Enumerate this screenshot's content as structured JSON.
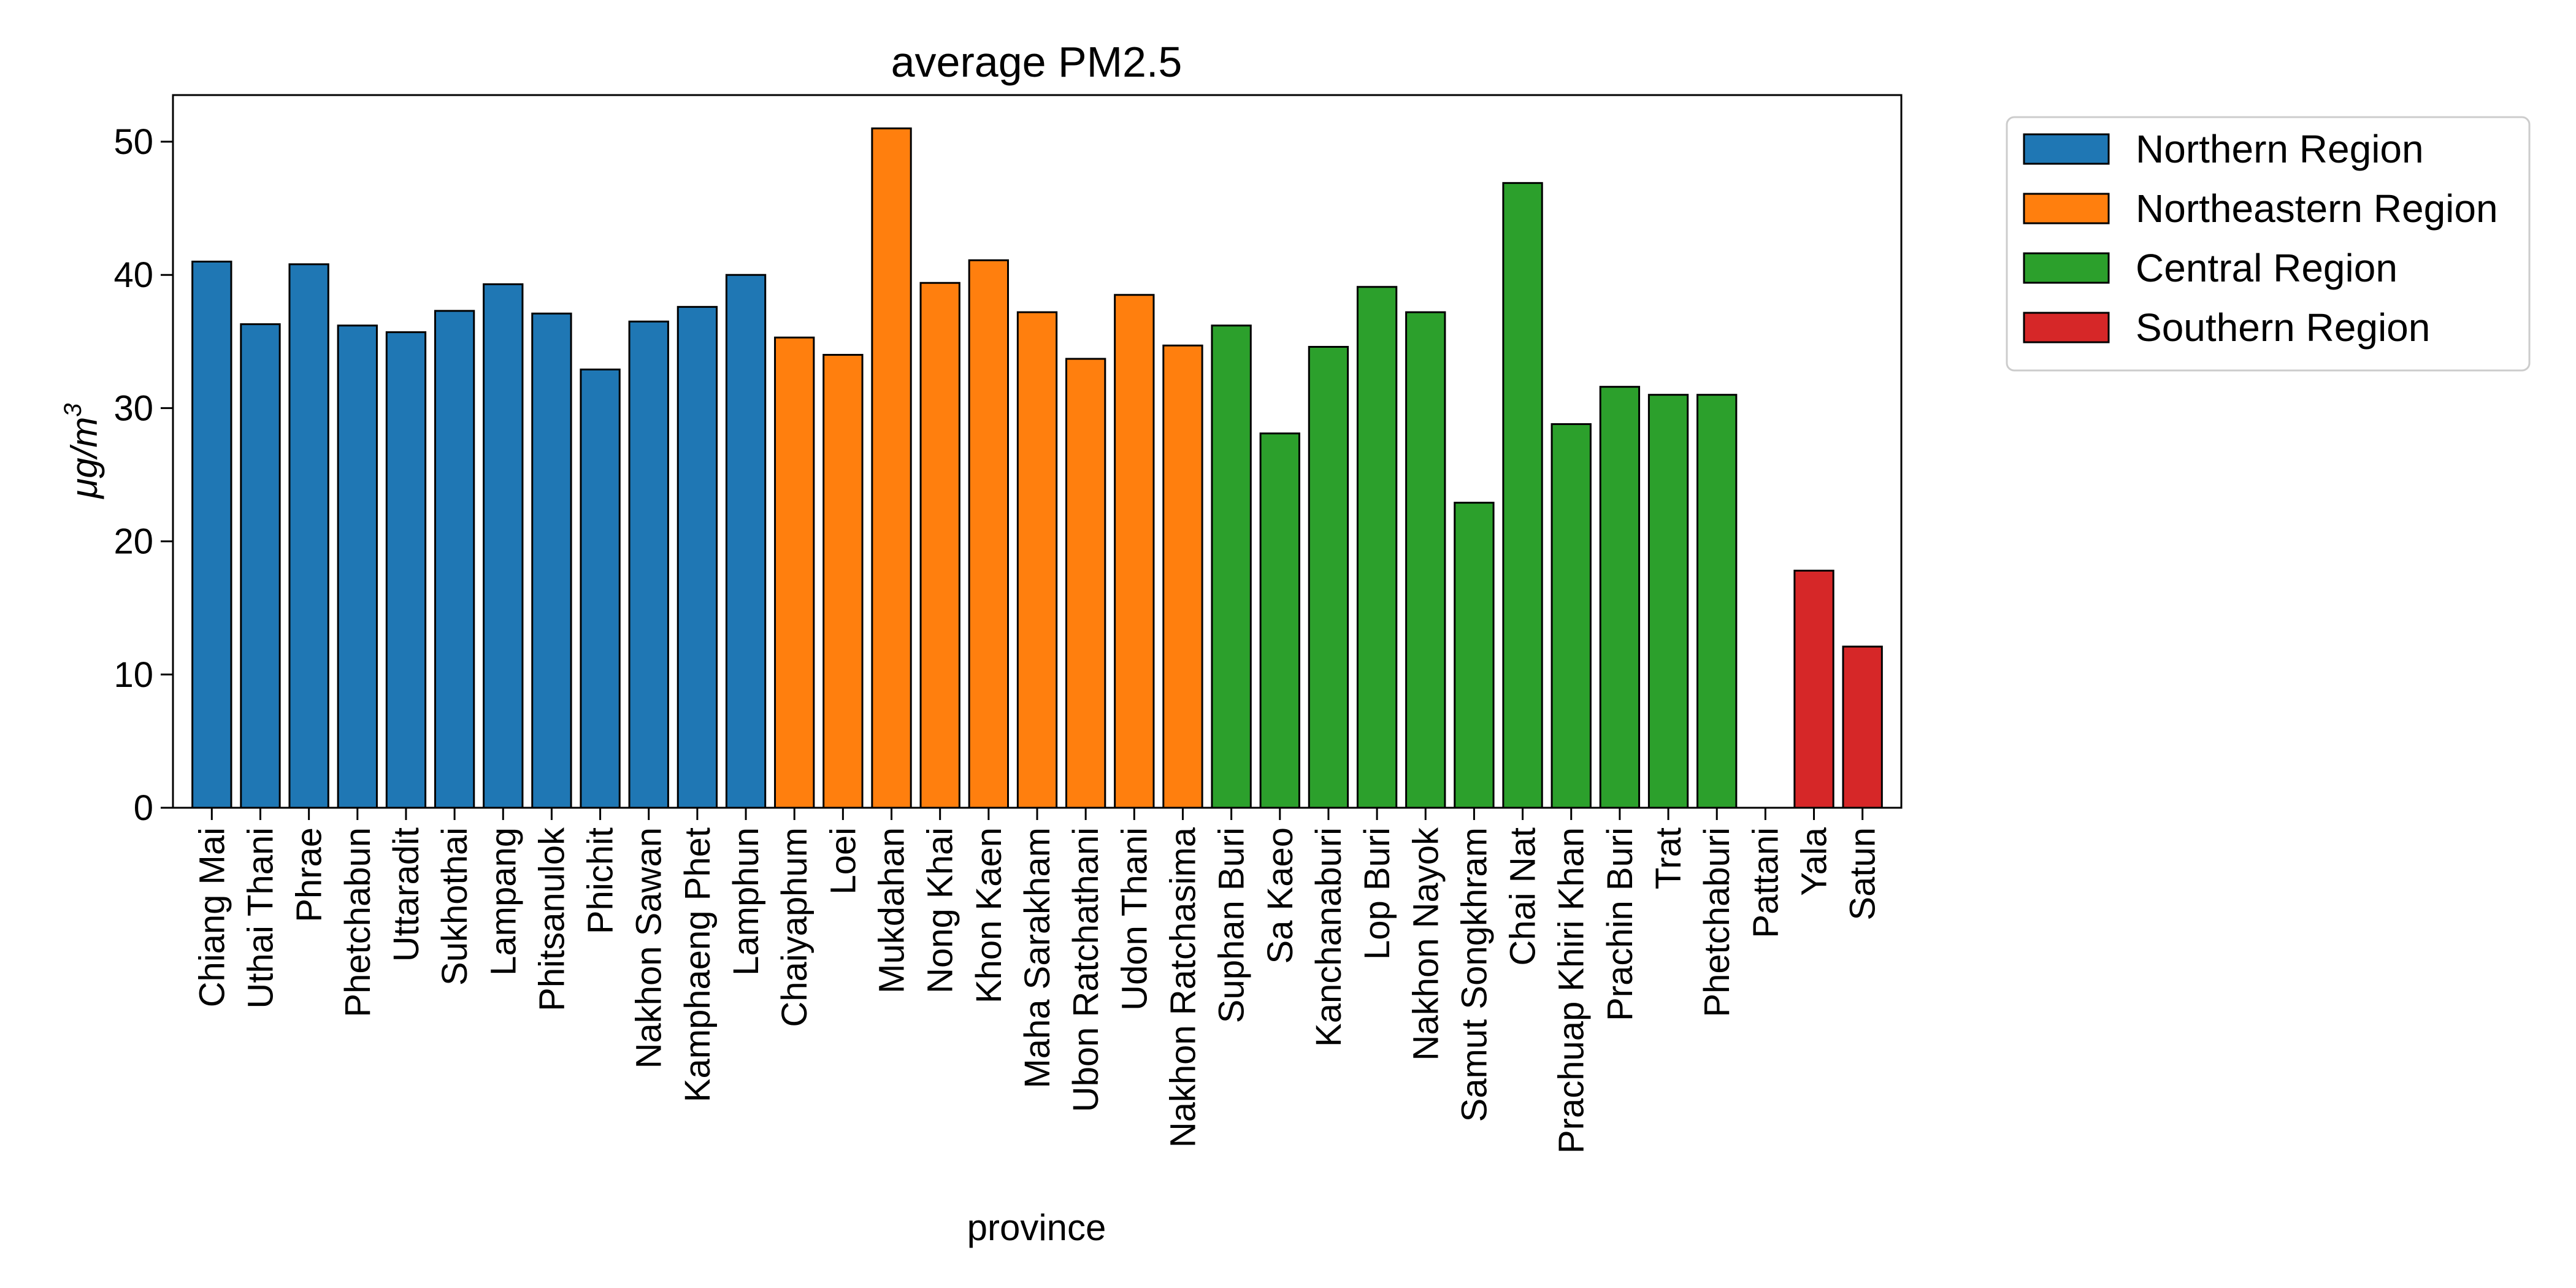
{
  "chart_data": {
    "type": "bar",
    "title": "average PM2.5",
    "xlabel": "province",
    "ylabel_base": "μg/m",
    "ylabel_sup": "3",
    "ylim": [
      0,
      53.5
    ],
    "yticks": [
      0,
      10,
      20,
      30,
      40,
      50
    ],
    "grid": false,
    "legend_position": "outside-top-right",
    "categories": [
      "Chiang Mai",
      "Uthai Thani",
      "Phrae",
      "Phetchabun",
      "Uttaradit",
      "Sukhothai",
      "Lampang",
      "Phitsanulok",
      "Phichit",
      "Nakhon Sawan",
      "Kamphaeng Phet",
      "Lamphun",
      "Chaiyaphum",
      "Loei",
      "Mukdahan",
      "Nong Khai",
      "Khon Kaen",
      "Maha Sarakham",
      "Ubon Ratchathani",
      "Udon Thani",
      "Nakhon Ratchasima",
      "Suphan Buri",
      "Sa Kaeo",
      "Kanchanaburi",
      "Lop Buri",
      "Nakhon Nayok",
      "Samut Songkhram",
      "Chai Nat",
      "Prachuap Khiri Khan",
      "Prachin Buri",
      "Trat",
      "Phetchaburi",
      "Pattani",
      "Yala",
      "Satun"
    ],
    "values": [
      41.0,
      36.3,
      40.8,
      36.2,
      35.7,
      37.3,
      39.3,
      37.1,
      32.9,
      36.5,
      37.6,
      40.0,
      35.3,
      34.0,
      51.0,
      39.4,
      41.1,
      37.2,
      33.7,
      38.5,
      34.7,
      36.2,
      28.1,
      34.6,
      39.1,
      37.2,
      22.9,
      46.9,
      28.8,
      31.6,
      31.0,
      31.0,
      null,
      17.8,
      12.1
    ],
    "regions": [
      "Northern Region",
      "Northern Region",
      "Northern Region",
      "Northern Region",
      "Northern Region",
      "Northern Region",
      "Northern Region",
      "Northern Region",
      "Northern Region",
      "Northern Region",
      "Northern Region",
      "Northern Region",
      "Northeastern Region",
      "Northeastern Region",
      "Northeastern Region",
      "Northeastern Region",
      "Northeastern Region",
      "Northeastern Region",
      "Northeastern Region",
      "Northeastern Region",
      "Northeastern Region",
      "Central Region",
      "Central Region",
      "Central Region",
      "Central Region",
      "Central Region",
      "Central Region",
      "Central Region",
      "Central Region",
      "Central Region",
      "Central Region",
      "Central Region",
      "Southern Region",
      "Southern Region",
      "Southern Region"
    ],
    "legend": [
      {
        "name": "Northern Region",
        "color": "#1f77b4"
      },
      {
        "name": "Northeastern Region",
        "color": "#ff7f0e"
      },
      {
        "name": "Central Region",
        "color": "#2ca02c"
      },
      {
        "name": "Southern Region",
        "color": "#d62728"
      }
    ]
  }
}
